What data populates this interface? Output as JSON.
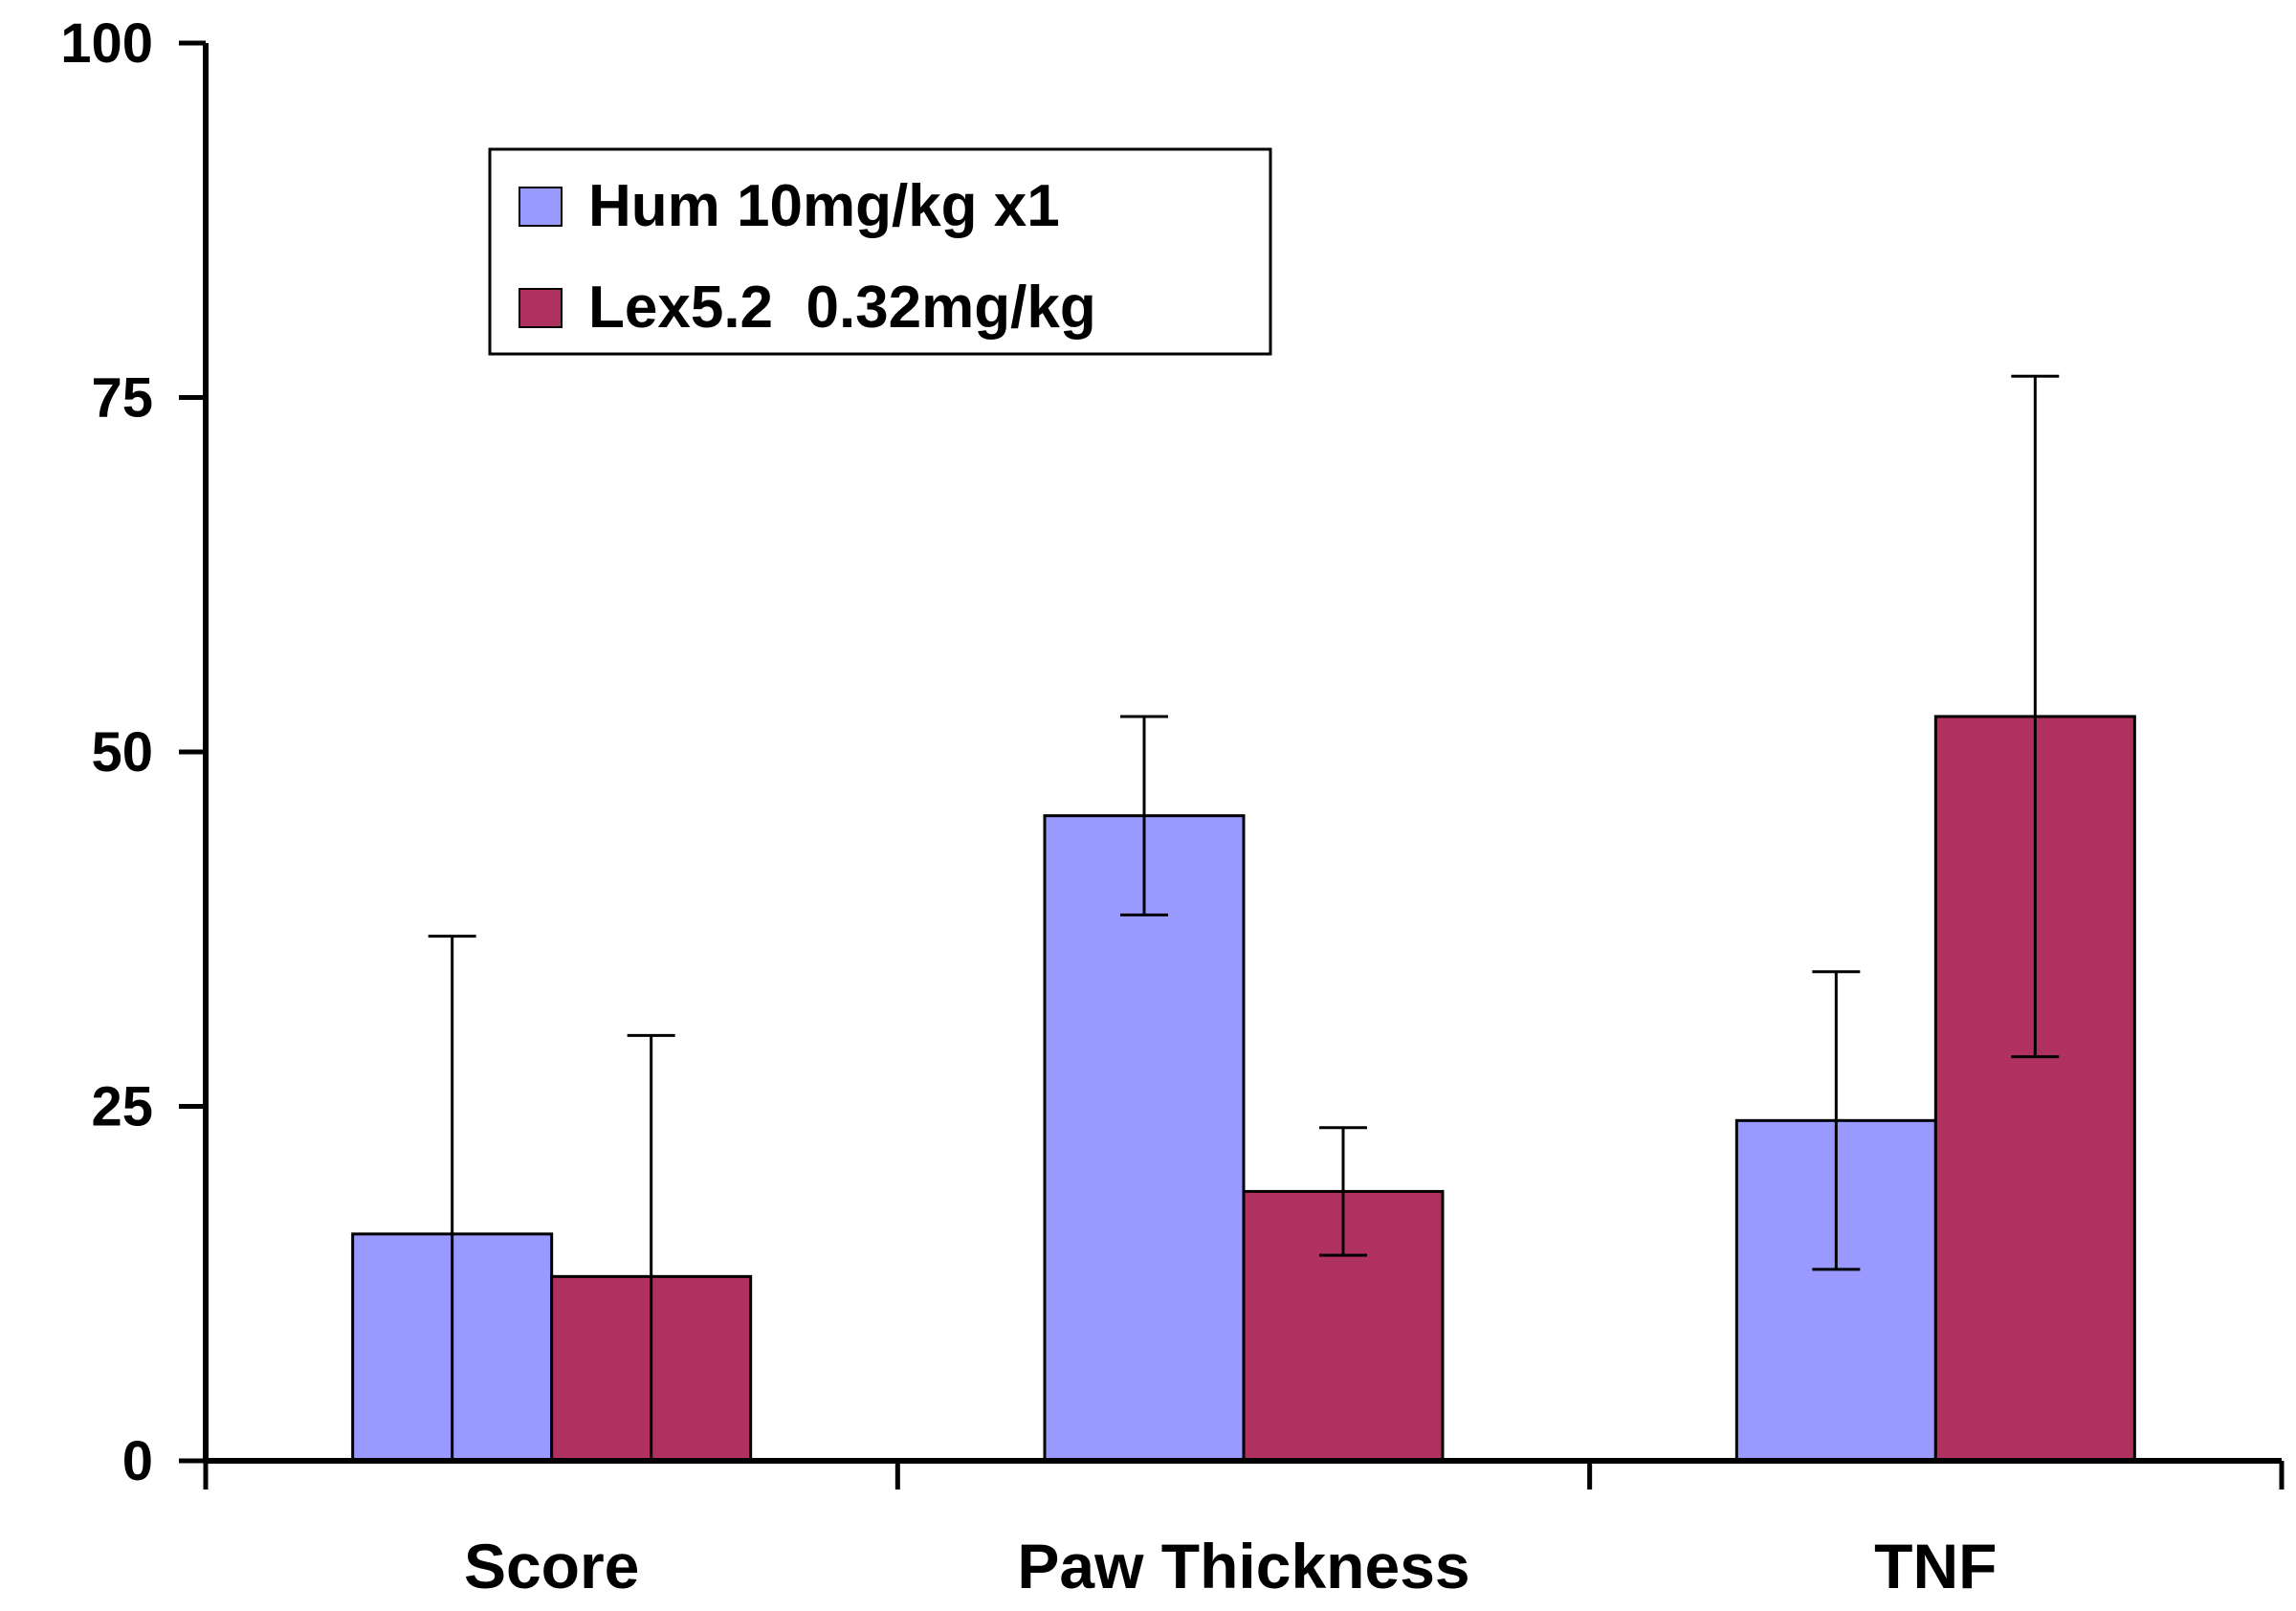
{
  "chart_data": {
    "type": "bar",
    "title": "",
    "xlabel": "",
    "ylabel": "",
    "ylim": [
      0,
      100
    ],
    "yticks": [
      0,
      25,
      50,
      75,
      100
    ],
    "categories": [
      "Score",
      "Paw Thickness",
      "TNF"
    ],
    "series": [
      {
        "name": "Hum 10mg/kg x1",
        "color": "#9999ff",
        "values": [
          16,
          45.5,
          24
        ],
        "error": [
          21,
          7,
          10.5
        ]
      },
      {
        "name": "Lex5.2  0.32mg/kg",
        "color": "#b03060",
        "values": [
          13,
          19,
          52.5
        ],
        "error": [
          17,
          4.5,
          24
        ]
      }
    ],
    "legend": {
      "position": "top-left"
    },
    "grid": false
  }
}
